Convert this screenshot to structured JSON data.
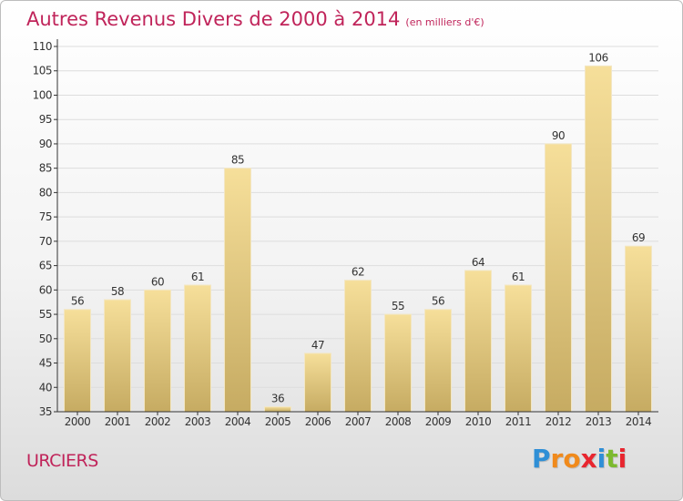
{
  "title": "Autres Revenus Divers de 2000 à 2014",
  "subtitle": "(en milliers d'€)",
  "commune": "URCIERS",
  "logo_text": "Proxiti",
  "colors": {
    "title": "#c0245a",
    "bar_top": "#f6df9a",
    "bar_bottom": "#c6ab62",
    "grid": "#dddddd",
    "axis": "#333333",
    "logo": [
      "#2f8fd6",
      "#f08a1c",
      "#f08a1c",
      "#e8262f",
      "#2f8fd6",
      "#7cba2f",
      "#e8262f"
    ]
  },
  "chart_data": {
    "type": "bar",
    "categories": [
      "2000",
      "2001",
      "2002",
      "2003",
      "2004",
      "2005",
      "2006",
      "2007",
      "2008",
      "2009",
      "2010",
      "2011",
      "2012",
      "2013",
      "2014"
    ],
    "values": [
      56,
      58,
      60,
      61,
      85,
      36,
      47,
      62,
      55,
      56,
      64,
      61,
      90,
      106,
      69
    ],
    "ylim": [
      35,
      110
    ],
    "yticks": [
      35,
      40,
      45,
      50,
      55,
      60,
      65,
      70,
      75,
      80,
      85,
      90,
      95,
      100,
      105,
      110
    ],
    "grid": true,
    "data_labels": true
  }
}
